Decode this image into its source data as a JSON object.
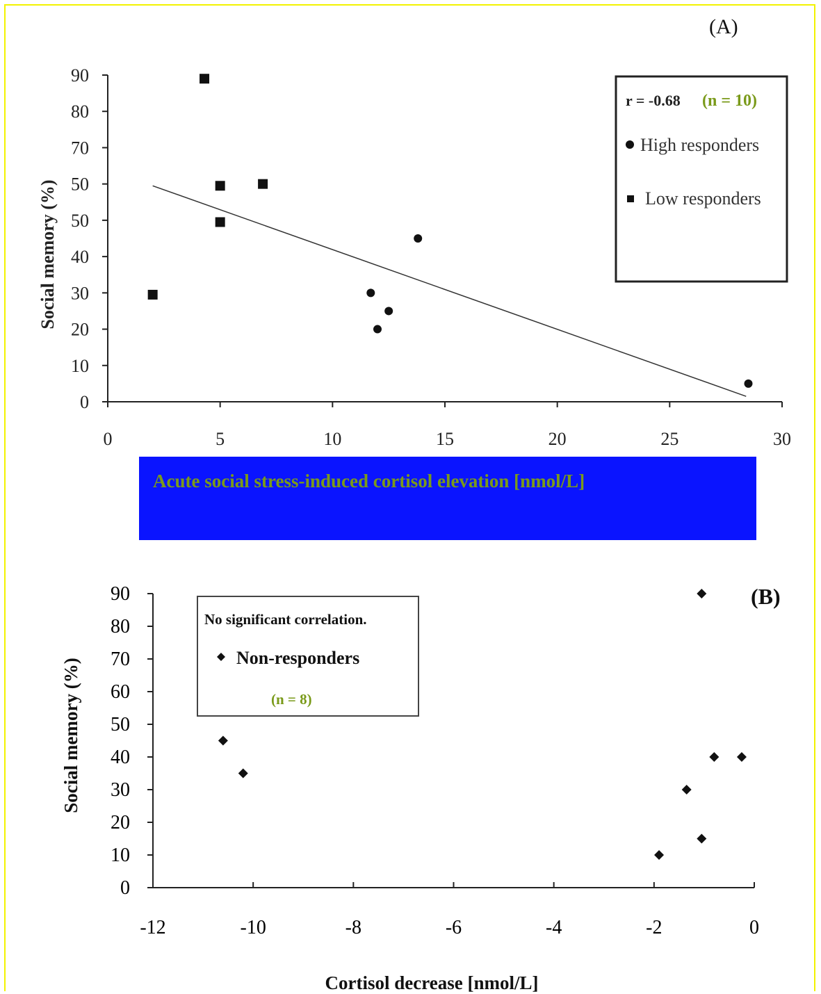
{
  "chart_data": [
    {
      "type": "scatter",
      "panel_label": "(A)",
      "xlabel": "Acute social stress-induced cortisol elevation [nmol/L]",
      "ylabel": "Social memory (%)",
      "xlim": [
        0,
        30
      ],
      "ylim": [
        0,
        90
      ],
      "xticks": [
        "0",
        "5",
        "10",
        "15",
        "20",
        "25",
        "30"
      ],
      "yticks": [
        "0",
        "10",
        "20",
        "30",
        "40",
        "50",
        "60",
        "70",
        "80",
        "90"
      ],
      "tick_label_quirk_note": "",
      "ytick_labels": [
        "0",
        "10",
        "20",
        "30",
        "40",
        "50",
        "50",
        "70",
        "80",
        "90"
      ],
      "legend": {
        "stat": "r = -0.68",
        "n": "(n = 10)",
        "entries": [
          "High responders",
          "Low responders"
        ],
        "placement": "top-right"
      },
      "series": [
        {
          "name": "High responders",
          "marker": "circle",
          "points": [
            [
              11.7,
              30
            ],
            [
              12.0,
              20
            ],
            [
              12.5,
              25
            ],
            [
              13.8,
              45
            ],
            [
              28.5,
              5
            ]
          ]
        },
        {
          "name": "Low responders",
          "marker": "square",
          "points": [
            [
              2.0,
              29.5
            ],
            [
              4.3,
              89
            ],
            [
              5.0,
              59.5
            ],
            [
              5.0,
              49.5
            ],
            [
              6.9,
              60
            ]
          ]
        }
      ],
      "trendline": {
        "from": [
          2.0,
          59.5
        ],
        "to": [
          28.4,
          1.5
        ]
      }
    },
    {
      "type": "scatter",
      "panel_label": "(B)",
      "xlabel": "Cortisol decrease [nmol/L]",
      "ylabel": "Social memory (%)",
      "xlim": [
        -12,
        0
      ],
      "ylim": [
        0,
        90
      ],
      "xticks": [
        "-12",
        "-10",
        "-8",
        "-6",
        "-4",
        "-2",
        "0"
      ],
      "yticks": [
        "0",
        "10",
        "20",
        "30",
        "40",
        "50",
        "60",
        "70",
        "80",
        "90"
      ],
      "legend": {
        "note": "No significant correlation.",
        "entries": [
          "Non-responders"
        ],
        "n": "(n = 8)",
        "placement": "top-left"
      },
      "series": [
        {
          "name": "Non-responders",
          "marker": "diamond",
          "points": [
            [
              -10.6,
              45
            ],
            [
              -10.2,
              35
            ],
            [
              -1.9,
              10
            ],
            [
              -1.35,
              30
            ],
            [
              -1.05,
              90
            ],
            [
              -1.05,
              15
            ],
            [
              -0.8,
              40
            ],
            [
              -0.25,
              40
            ]
          ]
        }
      ]
    }
  ],
  "colors": {
    "banner": "#0a14ff",
    "accent_text": "#7a9a1a",
    "frame": "#f2f200"
  }
}
